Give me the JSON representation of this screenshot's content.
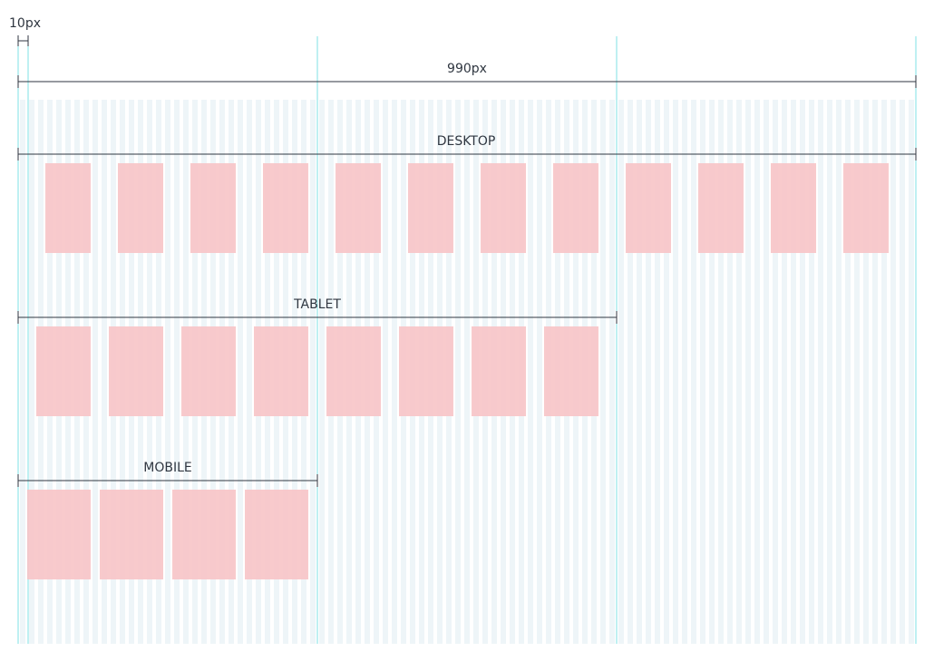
{
  "annotations": {
    "gutter_label": "10px",
    "total_width_label": "990px"
  },
  "layouts": [
    {
      "key": "desktop",
      "label": "DESKTOP",
      "columns": 12
    },
    {
      "key": "tablet",
      "label": "TABLET",
      "columns": 8
    },
    {
      "key": "mobile",
      "label": "MOBILE",
      "columns": 4
    }
  ],
  "colors": {
    "stripe": "#eef5f8",
    "guide": "#7fe0e6",
    "block": "#f7c4c6",
    "dimension_line": "#2f3640",
    "text": "#2f3640"
  }
}
